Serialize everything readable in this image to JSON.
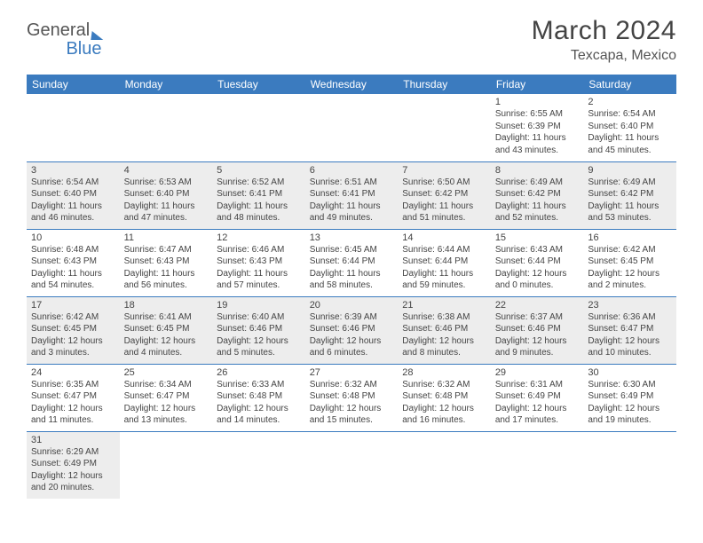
{
  "logo": {
    "part1": "General",
    "part2": "Blue"
  },
  "title": "March 2024",
  "location": "Texcapa, Mexico",
  "colors": {
    "header_bg": "#3b7bbf",
    "header_text": "#ffffff",
    "shaded_bg": "#ededed",
    "text": "#444444",
    "border": "#3b7bbf"
  },
  "daysOfWeek": [
    "Sunday",
    "Monday",
    "Tuesday",
    "Wednesday",
    "Thursday",
    "Friday",
    "Saturday"
  ],
  "weeks": [
    [
      {
        "empty": true
      },
      {
        "empty": true
      },
      {
        "empty": true
      },
      {
        "empty": true
      },
      {
        "empty": true
      },
      {
        "day": "1",
        "sunrise": "Sunrise: 6:55 AM",
        "sunset": "Sunset: 6:39 PM",
        "day1": "Daylight: 11 hours",
        "day2": "and 43 minutes."
      },
      {
        "day": "2",
        "sunrise": "Sunrise: 6:54 AM",
        "sunset": "Sunset: 6:40 PM",
        "day1": "Daylight: 11 hours",
        "day2": "and 45 minutes."
      }
    ],
    [
      {
        "day": "3",
        "shaded": true,
        "sunrise": "Sunrise: 6:54 AM",
        "sunset": "Sunset: 6:40 PM",
        "day1": "Daylight: 11 hours",
        "day2": "and 46 minutes."
      },
      {
        "day": "4",
        "shaded": true,
        "sunrise": "Sunrise: 6:53 AM",
        "sunset": "Sunset: 6:40 PM",
        "day1": "Daylight: 11 hours",
        "day2": "and 47 minutes."
      },
      {
        "day": "5",
        "shaded": true,
        "sunrise": "Sunrise: 6:52 AM",
        "sunset": "Sunset: 6:41 PM",
        "day1": "Daylight: 11 hours",
        "day2": "and 48 minutes."
      },
      {
        "day": "6",
        "shaded": true,
        "sunrise": "Sunrise: 6:51 AM",
        "sunset": "Sunset: 6:41 PM",
        "day1": "Daylight: 11 hours",
        "day2": "and 49 minutes."
      },
      {
        "day": "7",
        "shaded": true,
        "sunrise": "Sunrise: 6:50 AM",
        "sunset": "Sunset: 6:42 PM",
        "day1": "Daylight: 11 hours",
        "day2": "and 51 minutes."
      },
      {
        "day": "8",
        "shaded": true,
        "sunrise": "Sunrise: 6:49 AM",
        "sunset": "Sunset: 6:42 PM",
        "day1": "Daylight: 11 hours",
        "day2": "and 52 minutes."
      },
      {
        "day": "9",
        "shaded": true,
        "sunrise": "Sunrise: 6:49 AM",
        "sunset": "Sunset: 6:42 PM",
        "day1": "Daylight: 11 hours",
        "day2": "and 53 minutes."
      }
    ],
    [
      {
        "day": "10",
        "sunrise": "Sunrise: 6:48 AM",
        "sunset": "Sunset: 6:43 PM",
        "day1": "Daylight: 11 hours",
        "day2": "and 54 minutes."
      },
      {
        "day": "11",
        "sunrise": "Sunrise: 6:47 AM",
        "sunset": "Sunset: 6:43 PM",
        "day1": "Daylight: 11 hours",
        "day2": "and 56 minutes."
      },
      {
        "day": "12",
        "sunrise": "Sunrise: 6:46 AM",
        "sunset": "Sunset: 6:43 PM",
        "day1": "Daylight: 11 hours",
        "day2": "and 57 minutes."
      },
      {
        "day": "13",
        "sunrise": "Sunrise: 6:45 AM",
        "sunset": "Sunset: 6:44 PM",
        "day1": "Daylight: 11 hours",
        "day2": "and 58 minutes."
      },
      {
        "day": "14",
        "sunrise": "Sunrise: 6:44 AM",
        "sunset": "Sunset: 6:44 PM",
        "day1": "Daylight: 11 hours",
        "day2": "and 59 minutes."
      },
      {
        "day": "15",
        "sunrise": "Sunrise: 6:43 AM",
        "sunset": "Sunset: 6:44 PM",
        "day1": "Daylight: 12 hours",
        "day2": "and 0 minutes."
      },
      {
        "day": "16",
        "sunrise": "Sunrise: 6:42 AM",
        "sunset": "Sunset: 6:45 PM",
        "day1": "Daylight: 12 hours",
        "day2": "and 2 minutes."
      }
    ],
    [
      {
        "day": "17",
        "shaded": true,
        "sunrise": "Sunrise: 6:42 AM",
        "sunset": "Sunset: 6:45 PM",
        "day1": "Daylight: 12 hours",
        "day2": "and 3 minutes."
      },
      {
        "day": "18",
        "shaded": true,
        "sunrise": "Sunrise: 6:41 AM",
        "sunset": "Sunset: 6:45 PM",
        "day1": "Daylight: 12 hours",
        "day2": "and 4 minutes."
      },
      {
        "day": "19",
        "shaded": true,
        "sunrise": "Sunrise: 6:40 AM",
        "sunset": "Sunset: 6:46 PM",
        "day1": "Daylight: 12 hours",
        "day2": "and 5 minutes."
      },
      {
        "day": "20",
        "shaded": true,
        "sunrise": "Sunrise: 6:39 AM",
        "sunset": "Sunset: 6:46 PM",
        "day1": "Daylight: 12 hours",
        "day2": "and 6 minutes."
      },
      {
        "day": "21",
        "shaded": true,
        "sunrise": "Sunrise: 6:38 AM",
        "sunset": "Sunset: 6:46 PM",
        "day1": "Daylight: 12 hours",
        "day2": "and 8 minutes."
      },
      {
        "day": "22",
        "shaded": true,
        "sunrise": "Sunrise: 6:37 AM",
        "sunset": "Sunset: 6:46 PM",
        "day1": "Daylight: 12 hours",
        "day2": "and 9 minutes."
      },
      {
        "day": "23",
        "shaded": true,
        "sunrise": "Sunrise: 6:36 AM",
        "sunset": "Sunset: 6:47 PM",
        "day1": "Daylight: 12 hours",
        "day2": "and 10 minutes."
      }
    ],
    [
      {
        "day": "24",
        "sunrise": "Sunrise: 6:35 AM",
        "sunset": "Sunset: 6:47 PM",
        "day1": "Daylight: 12 hours",
        "day2": "and 11 minutes."
      },
      {
        "day": "25",
        "sunrise": "Sunrise: 6:34 AM",
        "sunset": "Sunset: 6:47 PM",
        "day1": "Daylight: 12 hours",
        "day2": "and 13 minutes."
      },
      {
        "day": "26",
        "sunrise": "Sunrise: 6:33 AM",
        "sunset": "Sunset: 6:48 PM",
        "day1": "Daylight: 12 hours",
        "day2": "and 14 minutes."
      },
      {
        "day": "27",
        "sunrise": "Sunrise: 6:32 AM",
        "sunset": "Sunset: 6:48 PM",
        "day1": "Daylight: 12 hours",
        "day2": "and 15 minutes."
      },
      {
        "day": "28",
        "sunrise": "Sunrise: 6:32 AM",
        "sunset": "Sunset: 6:48 PM",
        "day1": "Daylight: 12 hours",
        "day2": "and 16 minutes."
      },
      {
        "day": "29",
        "sunrise": "Sunrise: 6:31 AM",
        "sunset": "Sunset: 6:49 PM",
        "day1": "Daylight: 12 hours",
        "day2": "and 17 minutes."
      },
      {
        "day": "30",
        "sunrise": "Sunrise: 6:30 AM",
        "sunset": "Sunset: 6:49 PM",
        "day1": "Daylight: 12 hours",
        "day2": "and 19 minutes."
      }
    ],
    [
      {
        "day": "31",
        "shaded": true,
        "sunrise": "Sunrise: 6:29 AM",
        "sunset": "Sunset: 6:49 PM",
        "day1": "Daylight: 12 hours",
        "day2": "and 20 minutes."
      },
      {
        "empty": true
      },
      {
        "empty": true
      },
      {
        "empty": true
      },
      {
        "empty": true
      },
      {
        "empty": true
      },
      {
        "empty": true
      }
    ]
  ]
}
